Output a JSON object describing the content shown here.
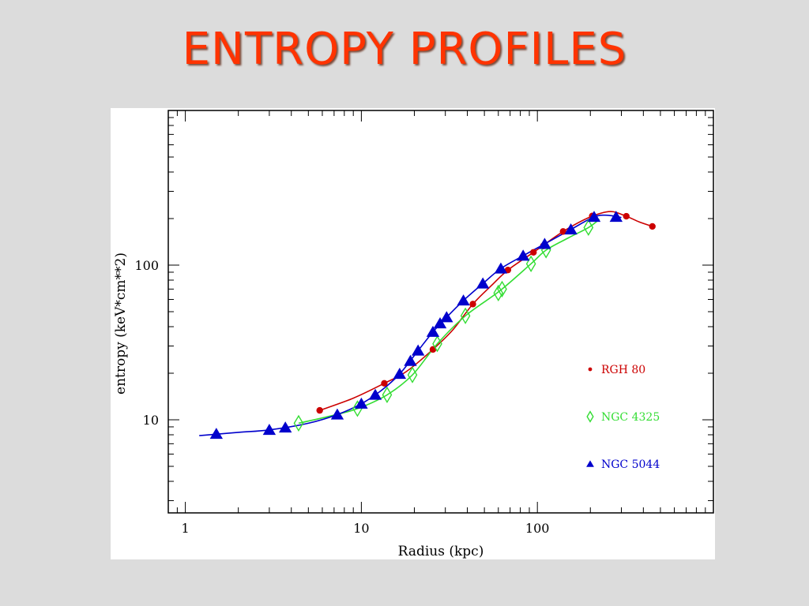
{
  "slide": {
    "title": "ENTROPY PROFILES"
  },
  "chart_data": {
    "type": "scatter",
    "xscale": "log",
    "yscale": "log",
    "xlim": [
      0.8,
      1000
    ],
    "ylim": [
      2.5,
      1000
    ],
    "xlabel": "Radius (kpc)",
    "ylabel": "entropy (keV*cm**2)",
    "x_ticks": [
      {
        "v": 1,
        "label": "1"
      },
      {
        "v": 10,
        "label": "10"
      },
      {
        "v": 100,
        "label": "100"
      }
    ],
    "y_ticks": [
      {
        "v": 10,
        "label": "10"
      },
      {
        "v": 100,
        "label": "100"
      }
    ],
    "legend_position": "right",
    "series": [
      {
        "name": "RGH 80",
        "marker": "circle",
        "color": "#cc0000",
        "points": [
          [
            5.8,
            11.5
          ],
          [
            13.5,
            17.2
          ],
          [
            25.5,
            28.5
          ],
          [
            43,
            56
          ],
          [
            68,
            93
          ],
          [
            95,
            121
          ],
          [
            108,
            133
          ],
          [
            140,
            165
          ],
          [
            205,
            208
          ],
          [
            320,
            207
          ],
          [
            450,
            178
          ]
        ],
        "curve": [
          [
            5.8,
            11.5
          ],
          [
            9,
            13.8
          ],
          [
            13.5,
            17.2
          ],
          [
            18,
            20.5
          ],
          [
            25.5,
            28.5
          ],
          [
            33,
            38
          ],
          [
            43,
            56
          ],
          [
            55,
            74
          ],
          [
            68,
            93
          ],
          [
            95,
            121
          ],
          [
            140,
            165
          ],
          [
            200,
            205
          ],
          [
            260,
            222
          ],
          [
            320,
            207
          ],
          [
            380,
            190
          ],
          [
            450,
            178
          ]
        ]
      },
      {
        "name": "NGC 4325",
        "marker": "diamond",
        "color": "#33dd33",
        "points": [
          [
            4.4,
            9.5
          ],
          [
            9.5,
            11.8
          ],
          [
            14,
            14.5
          ],
          [
            19.5,
            19.5
          ],
          [
            27,
            31
          ],
          [
            39,
            47
          ],
          [
            60,
            66
          ],
          [
            63,
            70
          ],
          [
            92,
            102
          ],
          [
            112,
            125
          ],
          [
            195,
            175
          ]
        ],
        "curve": [
          [
            4.4,
            9.5
          ],
          [
            6.5,
            10.5
          ],
          [
            9.5,
            11.8
          ],
          [
            14,
            14.5
          ],
          [
            19.5,
            19.5
          ],
          [
            27,
            31
          ],
          [
            39,
            47
          ],
          [
            61,
            68
          ],
          [
            92,
            102
          ],
          [
            112,
            125
          ],
          [
            150,
            150
          ],
          [
            195,
            175
          ],
          [
            225,
            198
          ]
        ]
      },
      {
        "name": "NGC 5044",
        "marker": "triangle",
        "color": "#0000cc",
        "points": [
          [
            1.5,
            8.1
          ],
          [
            3,
            8.6
          ],
          [
            3.7,
            8.9
          ],
          [
            7.3,
            10.8
          ],
          [
            10,
            12.7
          ],
          [
            12,
            14.5
          ],
          [
            16.5,
            19.8
          ],
          [
            19,
            24
          ],
          [
            21,
            28
          ],
          [
            25.5,
            37
          ],
          [
            28,
            42
          ],
          [
            30.5,
            46
          ],
          [
            38,
            59
          ],
          [
            49,
            76
          ],
          [
            62,
            95
          ],
          [
            83,
            115
          ],
          [
            110,
            137
          ],
          [
            155,
            170
          ],
          [
            210,
            205
          ],
          [
            280,
            205
          ]
        ],
        "curve": [
          [
            1.2,
            7.9
          ],
          [
            2,
            8.3
          ],
          [
            3,
            8.6
          ],
          [
            5,
            9.5
          ],
          [
            7.3,
            10.8
          ],
          [
            10,
            12.7
          ],
          [
            13,
            15.5
          ],
          [
            16.5,
            19.8
          ],
          [
            21,
            28
          ],
          [
            25.5,
            37
          ],
          [
            30.5,
            46
          ],
          [
            38,
            59
          ],
          [
            49,
            76
          ],
          [
            62,
            95
          ],
          [
            83,
            115
          ],
          [
            110,
            137
          ],
          [
            155,
            170
          ],
          [
            210,
            205
          ],
          [
            250,
            210
          ],
          [
            300,
            203
          ]
        ]
      }
    ]
  }
}
